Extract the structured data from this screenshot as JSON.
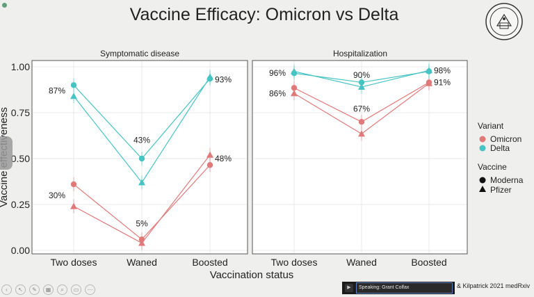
{
  "title": "Vaccine Efficacy: Omicron vs Delta",
  "speaking_label": "Speaking: Grant Colfax",
  "citation": "& Kilpatrick 2021 medRxiv",
  "colors": {
    "omicron": "#e07a7a",
    "delta": "#46c3c3",
    "grid": "#e8e8e8",
    "panel_border": "#555555"
  },
  "chart_data": [
    {
      "type": "line",
      "title": "Symptomatic disease",
      "categories": [
        "Two doses",
        "Waned",
        "Boosted"
      ],
      "xlabel": "Vaccination status",
      "ylabel": "Vaccine effectiveness",
      "ylim": [
        0,
        1
      ],
      "yticks": [
        "0.00",
        "0.25",
        "0.50",
        "0.75",
        "1.00"
      ],
      "legend_position": "right",
      "series": [
        {
          "name": "Omicron",
          "vaccine": "Moderna",
          "shape": "circle",
          "values": [
            0.36,
            0.06,
            0.465
          ]
        },
        {
          "name": "Omicron",
          "vaccine": "Pfizer",
          "shape": "triangle",
          "values": [
            0.24,
            0.04,
            0.52
          ]
        },
        {
          "name": "Delta",
          "vaccine": "Moderna",
          "shape": "circle",
          "values": [
            0.9,
            0.5,
            0.935
          ]
        },
        {
          "name": "Delta",
          "vaccine": "Pfizer",
          "shape": "triangle",
          "values": [
            0.84,
            0.37,
            0.945
          ]
        }
      ],
      "annotations": [
        {
          "text": "87%",
          "x": "Two doses",
          "y": 0.87
        },
        {
          "text": "30%",
          "x": "Two doses",
          "y": 0.3
        },
        {
          "text": "43%",
          "x": "Waned",
          "y": 0.6
        },
        {
          "text": "5%",
          "x": "Waned",
          "y": 0.145
        },
        {
          "text": "93%",
          "x": "Boosted",
          "y": 0.93
        },
        {
          "text": "48%",
          "x": "Boosted",
          "y": 0.5
        }
      ]
    },
    {
      "type": "line",
      "title": "Hospitalization",
      "categories": [
        "Two doses",
        "Waned",
        "Boosted"
      ],
      "xlabel": "Vaccination status",
      "ylim": [
        0,
        1
      ],
      "series": [
        {
          "name": "Omicron",
          "vaccine": "Moderna",
          "shape": "circle",
          "values": [
            0.885,
            0.7,
            0.915
          ]
        },
        {
          "name": "Omicron",
          "vaccine": "Pfizer",
          "shape": "triangle",
          "values": [
            0.855,
            0.635,
            0.91
          ]
        },
        {
          "name": "Delta",
          "vaccine": "Moderna",
          "shape": "circle",
          "values": [
            0.965,
            0.915,
            0.975
          ]
        },
        {
          "name": "Delta",
          "vaccine": "Pfizer",
          "shape": "triangle",
          "values": [
            0.975,
            0.89,
            0.98
          ]
        }
      ],
      "annotations": [
        {
          "text": "96%",
          "x": "Two doses",
          "y": 0.965
        },
        {
          "text": "86%",
          "x": "Two doses",
          "y": 0.855
        },
        {
          "text": "90%",
          "x": "Waned",
          "y": 0.955
        },
        {
          "text": "67%",
          "x": "Waned",
          "y": 0.77
        },
        {
          "text": "98%",
          "x": "Boosted",
          "y": 0.98
        },
        {
          "text": "91%",
          "x": "Boosted",
          "y": 0.915
        }
      ]
    }
  ],
  "legend": {
    "variant_title": "Variant",
    "variants": [
      {
        "label": "Omicron",
        "color": "#e07a7a"
      },
      {
        "label": "Delta",
        "color": "#46c3c3"
      }
    ],
    "vaccine_title": "Vaccine",
    "vaccines": [
      {
        "label": "Moderna",
        "shape": "circle"
      },
      {
        "label": "Pfizer",
        "shape": "triangle"
      }
    ]
  }
}
